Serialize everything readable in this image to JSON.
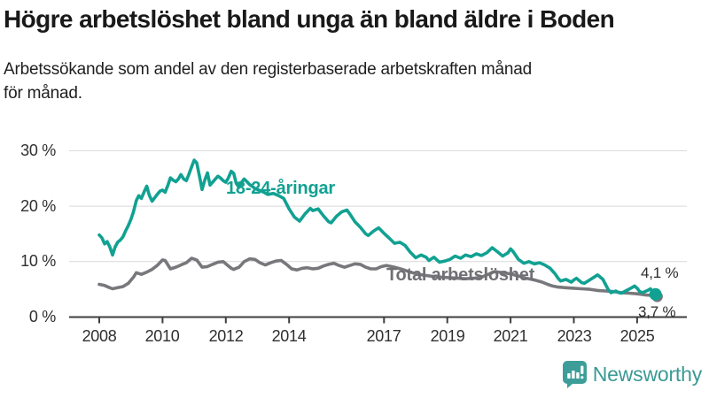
{
  "header": {
    "title": "Högre arbetslöshet bland unga än bland äldre i Boden",
    "subtitle_line1": "Arbetssökande som andel av den registerbaserade arbetskraften månad",
    "subtitle_line2": "för månad."
  },
  "chart_data": {
    "type": "line",
    "title": "Högre arbetslöshet bland unga än bland äldre i Boden",
    "xlabel": "",
    "ylabel": "",
    "x_axis": {
      "ticks": [
        2008,
        2010,
        2012,
        2014,
        2017,
        2019,
        2021,
        2023,
        2025
      ],
      "tick_labels": [
        "2008",
        "2010",
        "2012",
        "2014",
        "2017",
        "2019",
        "2021",
        "2023",
        "2025"
      ],
      "range": [
        2007.0,
        2026.5
      ]
    },
    "y_axis": {
      "ticks": [
        0,
        10,
        20,
        30
      ],
      "tick_labels": [
        "0 %",
        "10 %",
        "20 %",
        "30 %"
      ],
      "range": [
        0,
        31
      ],
      "unit": "percent",
      "grid": true
    },
    "style": {
      "grid_color": "#d9d9d9",
      "axis_color": "#3e3e3e"
    },
    "series": [
      {
        "name": "18-24-åringar",
        "color": "#11a192",
        "end_label": "4,1 %",
        "end_value": 4.1,
        "points": [
          [
            2008.0,
            14.8
          ],
          [
            2008.08,
            14.3
          ],
          [
            2008.17,
            13.2
          ],
          [
            2008.25,
            13.6
          ],
          [
            2008.33,
            12.7
          ],
          [
            2008.42,
            11.2
          ],
          [
            2008.5,
            12.6
          ],
          [
            2008.58,
            13.5
          ],
          [
            2008.67,
            13.9
          ],
          [
            2008.75,
            14.5
          ],
          [
            2008.83,
            15.5
          ],
          [
            2008.92,
            16.5
          ],
          [
            2009.0,
            17.6
          ],
          [
            2009.08,
            19.0
          ],
          [
            2009.17,
            21.0
          ],
          [
            2009.25,
            21.9
          ],
          [
            2009.33,
            21.4
          ],
          [
            2009.42,
            22.6
          ],
          [
            2009.5,
            23.6
          ],
          [
            2009.58,
            22.0
          ],
          [
            2009.67,
            20.9
          ],
          [
            2009.75,
            21.5
          ],
          [
            2009.83,
            22.1
          ],
          [
            2009.92,
            22.7
          ],
          [
            2010.0,
            22.9
          ],
          [
            2010.08,
            22.5
          ],
          [
            2010.17,
            23.8
          ],
          [
            2010.25,
            25.1
          ],
          [
            2010.33,
            24.7
          ],
          [
            2010.42,
            24.4
          ],
          [
            2010.5,
            24.9
          ],
          [
            2010.58,
            25.7
          ],
          [
            2010.67,
            24.9
          ],
          [
            2010.75,
            24.6
          ],
          [
            2010.83,
            25.7
          ],
          [
            2010.92,
            27.1
          ],
          [
            2011.0,
            28.3
          ],
          [
            2011.08,
            27.8
          ],
          [
            2011.17,
            25.3
          ],
          [
            2011.25,
            23.0
          ],
          [
            2011.33,
            24.6
          ],
          [
            2011.42,
            26.0
          ],
          [
            2011.5,
            23.8
          ],
          [
            2011.58,
            24.3
          ],
          [
            2011.67,
            24.9
          ],
          [
            2011.75,
            25.4
          ],
          [
            2011.83,
            25.1
          ],
          [
            2011.92,
            24.6
          ],
          [
            2012.0,
            24.3
          ],
          [
            2012.08,
            25.1
          ],
          [
            2012.17,
            26.3
          ],
          [
            2012.25,
            25.9
          ],
          [
            2012.33,
            24.1
          ],
          [
            2012.42,
            23.4
          ],
          [
            2012.5,
            24.3
          ],
          [
            2012.58,
            24.9
          ],
          [
            2012.67,
            24.4
          ],
          [
            2012.75,
            23.9
          ],
          [
            2012.83,
            23.6
          ],
          [
            2012.92,
            23.2
          ],
          [
            2013.0,
            23.0
          ],
          [
            2013.17,
            22.6
          ],
          [
            2013.33,
            22.1
          ],
          [
            2013.5,
            22.3
          ],
          [
            2013.67,
            21.9
          ],
          [
            2013.83,
            21.4
          ],
          [
            2014.0,
            19.5
          ],
          [
            2014.17,
            18.0
          ],
          [
            2014.33,
            17.3
          ],
          [
            2014.5,
            18.6
          ],
          [
            2014.67,
            19.6
          ],
          [
            2014.75,
            19.2
          ],
          [
            2014.92,
            19.5
          ],
          [
            2015.08,
            18.3
          ],
          [
            2015.25,
            17.2
          ],
          [
            2015.33,
            17.0
          ],
          [
            2015.5,
            18.2
          ],
          [
            2015.67,
            19.0
          ],
          [
            2015.83,
            19.3
          ],
          [
            2015.92,
            18.6
          ],
          [
            2016.08,
            17.2
          ],
          [
            2016.25,
            16.2
          ],
          [
            2016.42,
            15.0
          ],
          [
            2016.5,
            14.7
          ],
          [
            2016.67,
            15.5
          ],
          [
            2016.83,
            16.1
          ],
          [
            2017.0,
            15.1
          ],
          [
            2017.17,
            14.2
          ],
          [
            2017.33,
            13.3
          ],
          [
            2017.5,
            13.5
          ],
          [
            2017.67,
            12.9
          ],
          [
            2017.83,
            11.7
          ],
          [
            2018.0,
            10.7
          ],
          [
            2018.17,
            11.2
          ],
          [
            2018.33,
            10.8
          ],
          [
            2018.42,
            10.2
          ],
          [
            2018.58,
            10.8
          ],
          [
            2018.75,
            9.9
          ],
          [
            2018.92,
            10.1
          ],
          [
            2019.08,
            10.4
          ],
          [
            2019.25,
            11.0
          ],
          [
            2019.42,
            10.6
          ],
          [
            2019.58,
            11.2
          ],
          [
            2019.75,
            10.9
          ],
          [
            2019.92,
            11.4
          ],
          [
            2020.08,
            11.1
          ],
          [
            2020.25,
            11.6
          ],
          [
            2020.42,
            12.5
          ],
          [
            2020.58,
            11.8
          ],
          [
            2020.75,
            11.0
          ],
          [
            2020.92,
            11.6
          ],
          [
            2021.0,
            12.3
          ],
          [
            2021.08,
            11.8
          ],
          [
            2021.25,
            10.4
          ],
          [
            2021.42,
            9.7
          ],
          [
            2021.58,
            10.0
          ],
          [
            2021.75,
            9.6
          ],
          [
            2021.92,
            9.8
          ],
          [
            2022.08,
            9.4
          ],
          [
            2022.25,
            8.8
          ],
          [
            2022.42,
            7.7
          ],
          [
            2022.5,
            7.0
          ],
          [
            2022.58,
            6.5
          ],
          [
            2022.75,
            6.8
          ],
          [
            2022.92,
            6.3
          ],
          [
            2023.0,
            6.7
          ],
          [
            2023.08,
            7.0
          ],
          [
            2023.25,
            6.2
          ],
          [
            2023.33,
            6.1
          ],
          [
            2023.5,
            6.7
          ],
          [
            2023.67,
            7.3
          ],
          [
            2023.75,
            7.6
          ],
          [
            2023.92,
            6.8
          ],
          [
            2024.0,
            5.9
          ],
          [
            2024.08,
            5.0
          ],
          [
            2024.17,
            4.4
          ],
          [
            2024.33,
            4.7
          ],
          [
            2024.42,
            4.4
          ],
          [
            2024.5,
            4.3
          ],
          [
            2024.67,
            4.8
          ],
          [
            2024.83,
            5.3
          ],
          [
            2024.92,
            5.6
          ],
          [
            2025.0,
            5.2
          ],
          [
            2025.08,
            4.6
          ],
          [
            2025.17,
            4.4
          ],
          [
            2025.33,
            4.8
          ],
          [
            2025.42,
            5.1
          ],
          [
            2025.5,
            4.5
          ],
          [
            2025.58,
            4.1
          ]
        ]
      },
      {
        "name": "Total arbetslöshet",
        "color": "#78787c",
        "end_label": "3,7 %",
        "end_value": 3.7,
        "points": [
          [
            2008.0,
            5.9
          ],
          [
            2008.17,
            5.7
          ],
          [
            2008.33,
            5.3
          ],
          [
            2008.42,
            5.1
          ],
          [
            2008.58,
            5.3
          ],
          [
            2008.75,
            5.5
          ],
          [
            2008.92,
            6.1
          ],
          [
            2009.08,
            7.2
          ],
          [
            2009.17,
            8.0
          ],
          [
            2009.33,
            7.7
          ],
          [
            2009.5,
            8.1
          ],
          [
            2009.67,
            8.6
          ],
          [
            2009.83,
            9.3
          ],
          [
            2010.0,
            10.3
          ],
          [
            2010.08,
            10.2
          ],
          [
            2010.25,
            8.7
          ],
          [
            2010.42,
            9.0
          ],
          [
            2010.58,
            9.4
          ],
          [
            2010.75,
            9.8
          ],
          [
            2010.92,
            10.6
          ],
          [
            2011.08,
            10.3
          ],
          [
            2011.25,
            9.0
          ],
          [
            2011.42,
            9.1
          ],
          [
            2011.58,
            9.5
          ],
          [
            2011.75,
            9.9
          ],
          [
            2011.92,
            10.0
          ],
          [
            2012.0,
            9.6
          ],
          [
            2012.17,
            8.8
          ],
          [
            2012.25,
            8.6
          ],
          [
            2012.42,
            9.0
          ],
          [
            2012.58,
            10.0
          ],
          [
            2012.75,
            10.5
          ],
          [
            2012.92,
            10.4
          ],
          [
            2013.08,
            9.8
          ],
          [
            2013.25,
            9.4
          ],
          [
            2013.42,
            9.8
          ],
          [
            2013.58,
            10.1
          ],
          [
            2013.75,
            10.2
          ],
          [
            2013.92,
            9.5
          ],
          [
            2014.08,
            8.7
          ],
          [
            2014.25,
            8.5
          ],
          [
            2014.42,
            8.8
          ],
          [
            2014.58,
            8.9
          ],
          [
            2014.75,
            8.7
          ],
          [
            2014.92,
            8.8
          ],
          [
            2015.08,
            9.2
          ],
          [
            2015.25,
            9.5
          ],
          [
            2015.42,
            9.7
          ],
          [
            2015.58,
            9.3
          ],
          [
            2015.75,
            9.0
          ],
          [
            2015.92,
            9.3
          ],
          [
            2016.08,
            9.6
          ],
          [
            2016.25,
            9.5
          ],
          [
            2016.42,
            9.0
          ],
          [
            2016.58,
            8.7
          ],
          [
            2016.75,
            8.7
          ],
          [
            2016.92,
            9.1
          ],
          [
            2017.08,
            9.3
          ],
          [
            2017.33,
            9.0
          ],
          [
            2017.58,
            8.6
          ],
          [
            2017.83,
            8.1
          ],
          [
            2018.08,
            7.7
          ],
          [
            2018.33,
            7.5
          ],
          [
            2018.58,
            7.3
          ],
          [
            2018.83,
            7.2
          ],
          [
            2019.08,
            7.1
          ],
          [
            2019.33,
            7.0
          ],
          [
            2019.58,
            6.9
          ],
          [
            2019.83,
            7.0
          ],
          [
            2020.08,
            7.2
          ],
          [
            2020.33,
            7.8
          ],
          [
            2020.5,
            8.2
          ],
          [
            2020.75,
            8.0
          ],
          [
            2021.0,
            7.8
          ],
          [
            2021.25,
            7.4
          ],
          [
            2021.5,
            7.0
          ],
          [
            2021.75,
            6.7
          ],
          [
            2022.0,
            6.3
          ],
          [
            2022.17,
            5.9
          ],
          [
            2022.33,
            5.6
          ],
          [
            2022.5,
            5.4
          ],
          [
            2022.75,
            5.3
          ],
          [
            2023.0,
            5.2
          ],
          [
            2023.25,
            5.1
          ],
          [
            2023.5,
            5.0
          ],
          [
            2023.75,
            4.8
          ],
          [
            2024.0,
            4.7
          ],
          [
            2024.25,
            4.6
          ],
          [
            2024.5,
            4.4
          ],
          [
            2024.75,
            4.3
          ],
          [
            2025.0,
            4.2
          ],
          [
            2025.25,
            4.0
          ],
          [
            2025.45,
            3.9
          ],
          [
            2025.58,
            3.7
          ]
        ]
      }
    ],
    "legend_position": "inline-labels",
    "grid": "horizontal-only"
  },
  "footer": {
    "brand": "Newsworthy",
    "brand_color": "#3a9a94",
    "icon_color": "#3d9e99"
  }
}
